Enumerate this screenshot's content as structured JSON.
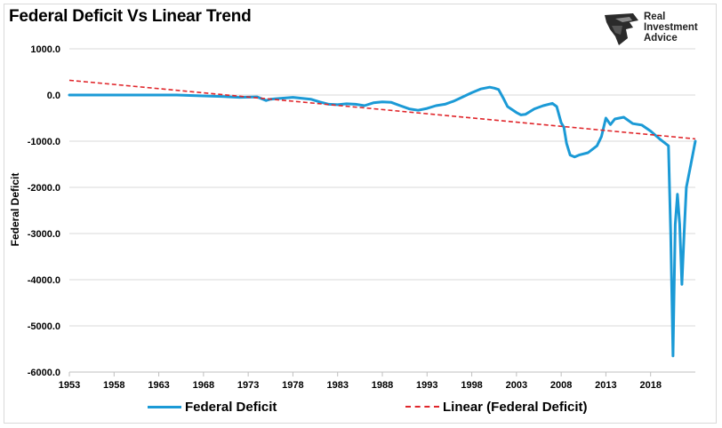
{
  "title": "Federal Deficit Vs Linear Trend",
  "logo": {
    "icon": "eagle-head-icon",
    "line1": "Real",
    "line2": "Investment",
    "line3": "Advice"
  },
  "colors": {
    "series": "#1b9ad6",
    "trend": "#e0262b",
    "grid": "#d9d9d9"
  },
  "chart_data": {
    "type": "line",
    "title": "Federal Deficit Vs Linear Trend",
    "xlabel": "",
    "ylabel": "Federal Deficit",
    "xlim": [
      1953,
      2023
    ],
    "ylim": [
      -6000,
      1000
    ],
    "x_ticks": [
      "1953",
      "1958",
      "1963",
      "1968",
      "1973",
      "1978",
      "1983",
      "1988",
      "1993",
      "1998",
      "2003",
      "2008",
      "2013",
      "2018"
    ],
    "y_ticks": [
      "1000.0",
      "0.0",
      "-1000.0",
      "-2000.0",
      "-3000.0",
      "-4000.0",
      "-5000.0",
      "-6000.0"
    ],
    "grid": true,
    "legend_position": "bottom",
    "series": [
      {
        "name": "Federal Deficit",
        "x": [
          1953,
          1956,
          1959,
          1962,
          1965,
          1968,
          1970,
          1972,
          1974,
          1975,
          1975.5,
          1976,
          1978,
          1980,
          1981,
          1982,
          1983,
          1984,
          1985,
          1986,
          1987,
          1988,
          1989,
          1990,
          1991,
          1992,
          1993,
          1994,
          1995,
          1996,
          1997,
          1998,
          1999,
          2000,
          2000.5,
          2001,
          2001.5,
          2002,
          2003,
          2003.5,
          2004,
          2005,
          2006,
          2007,
          2007.5,
          2008,
          2008.3,
          2008.6,
          2009,
          2009.5,
          2010,
          2011,
          2012,
          2012.5,
          2013,
          2013.5,
          2014,
          2015,
          2016,
          2017,
          2018,
          2019,
          2020,
          2020.25,
          2020.5,
          2020.75,
          2021,
          2021.25,
          2021.5,
          2021.75,
          2022,
          2022.5,
          2023
        ],
        "values": [
          0,
          0,
          0,
          0,
          0,
          -20,
          -30,
          -50,
          -40,
          -120,
          -90,
          -80,
          -50,
          -90,
          -150,
          -200,
          -210,
          -190,
          -200,
          -230,
          -170,
          -150,
          -160,
          -230,
          -300,
          -330,
          -290,
          -230,
          -200,
          -130,
          -40,
          50,
          130,
          170,
          150,
          120,
          -60,
          -250,
          -380,
          -430,
          -420,
          -300,
          -230,
          -180,
          -250,
          -600,
          -700,
          -1050,
          -1300,
          -1340,
          -1300,
          -1250,
          -1100,
          -900,
          -500,
          -640,
          -520,
          -480,
          -620,
          -650,
          -780,
          -950,
          -1100,
          -3000,
          -5650,
          -2800,
          -2150,
          -2800,
          -4100,
          -3000,
          -2000,
          -1500,
          -1000
        ]
      },
      {
        "name": "Linear (Federal Deficit)",
        "x": [
          1953,
          2023
        ],
        "values": [
          320,
          -950
        ]
      }
    ]
  }
}
